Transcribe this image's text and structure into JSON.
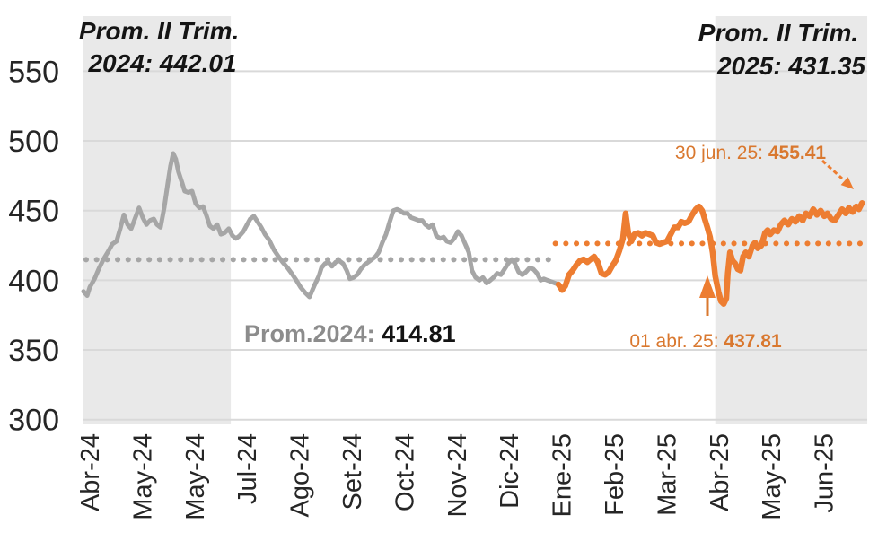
{
  "chart_data": {
    "type": "line",
    "title": "",
    "x_unit": "months since Apr-2024 (daily price series)",
    "x_tick_labels": [
      "Abr-24",
      "May-24",
      "May-24",
      "Jul-24",
      "Ago-24",
      "Set-24",
      "Oct-24",
      "Nov-24",
      "Dic-24",
      "Ene-25",
      "Feb-25",
      "Mar-25",
      "Abr-25",
      "May-25",
      "Jun-25"
    ],
    "y_ticks": [
      300,
      350,
      400,
      450,
      500,
      550
    ],
    "y_range": [
      300,
      550
    ],
    "grid": "horizontal",
    "legend": "none",
    "style": {
      "gray_series": "#A6A6A6",
      "orange_series": "#ED7D31",
      "annotation_orange": "#D9782F",
      "gridline": "#D9D9D9",
      "shade": "#E9E9E9",
      "text_dark": "#141414",
      "text_gray": "#8C8C8C"
    },
    "series": [
      {
        "name": "2024 (gray)",
        "color": "#A6A6A6",
        "width": 5,
        "points": [
          [
            0,
            392
          ],
          [
            0.07,
            389
          ],
          [
            0.12,
            395
          ],
          [
            0.21,
            401
          ],
          [
            0.29,
            408
          ],
          [
            0.38,
            415
          ],
          [
            0.46,
            420
          ],
          [
            0.55,
            426
          ],
          [
            0.63,
            428
          ],
          [
            0.7,
            437
          ],
          [
            0.77,
            447
          ],
          [
            0.84,
            440
          ],
          [
            0.91,
            437
          ],
          [
            0.98,
            444
          ],
          [
            1.06,
            452
          ],
          [
            1.13,
            445
          ],
          [
            1.2,
            440
          ],
          [
            1.27,
            443
          ],
          [
            1.34,
            444
          ],
          [
            1.4,
            440
          ],
          [
            1.47,
            438
          ],
          [
            1.54,
            452
          ],
          [
            1.61,
            470
          ],
          [
            1.66,
            482
          ],
          [
            1.71,
            491
          ],
          [
            1.76,
            487
          ],
          [
            1.81,
            478
          ],
          [
            1.88,
            470
          ],
          [
            1.93,
            464
          ],
          [
            2,
            463
          ],
          [
            2.07,
            464
          ],
          [
            2.14,
            455
          ],
          [
            2.21,
            452
          ],
          [
            2.28,
            453
          ],
          [
            2.35,
            446
          ],
          [
            2.41,
            439
          ],
          [
            2.48,
            437
          ],
          [
            2.55,
            440
          ],
          [
            2.62,
            433
          ],
          [
            2.69,
            434
          ],
          [
            2.77,
            437
          ],
          [
            2.84,
            432
          ],
          [
            2.91,
            430
          ],
          [
            2.98,
            432
          ],
          [
            3.05,
            435
          ],
          [
            3.12,
            440
          ],
          [
            3.18,
            444
          ],
          [
            3.25,
            446
          ],
          [
            3.32,
            442
          ],
          [
            3.39,
            438
          ],
          [
            3.46,
            433
          ],
          [
            3.54,
            429
          ],
          [
            3.63,
            422
          ],
          [
            3.72,
            417
          ],
          [
            3.8,
            413
          ],
          [
            3.89,
            409
          ],
          [
            3.97,
            405
          ],
          [
            4.06,
            400
          ],
          [
            4.14,
            395
          ],
          [
            4.23,
            391
          ],
          [
            4.31,
            388
          ],
          [
            4.4,
            396
          ],
          [
            4.49,
            403
          ],
          [
            4.54,
            409
          ],
          [
            4.61,
            412
          ],
          [
            4.67,
            413
          ],
          [
            4.74,
            410
          ],
          [
            4.81,
            413
          ],
          [
            4.88,
            414
          ],
          [
            4.95,
            412
          ],
          [
            5.02,
            407
          ],
          [
            5.08,
            401
          ],
          [
            5.15,
            402
          ],
          [
            5.22,
            404
          ],
          [
            5.29,
            408
          ],
          [
            5.36,
            411
          ],
          [
            5.43,
            413
          ],
          [
            5.5,
            415
          ],
          [
            5.57,
            417
          ],
          [
            5.63,
            420
          ],
          [
            5.7,
            427
          ],
          [
            5.77,
            433
          ],
          [
            5.84,
            442
          ],
          [
            5.91,
            450
          ],
          [
            5.98,
            451
          ],
          [
            6.04,
            450
          ],
          [
            6.11,
            448
          ],
          [
            6.18,
            448
          ],
          [
            6.25,
            445
          ],
          [
            6.32,
            444
          ],
          [
            6.39,
            443
          ],
          [
            6.46,
            443
          ],
          [
            6.52,
            440
          ],
          [
            6.59,
            438
          ],
          [
            6.66,
            440
          ],
          [
            6.73,
            432
          ],
          [
            6.8,
            430
          ],
          [
            6.87,
            431
          ],
          [
            6.93,
            428
          ],
          [
            7,
            427
          ],
          [
            7.07,
            430
          ],
          [
            7.14,
            435
          ],
          [
            7.21,
            432
          ],
          [
            7.28,
            426
          ],
          [
            7.35,
            420
          ],
          [
            7.41,
            407
          ],
          [
            7.48,
            402
          ],
          [
            7.55,
            400
          ],
          [
            7.62,
            402
          ],
          [
            7.69,
            398
          ],
          [
            7.76,
            400
          ],
          [
            7.82,
            402
          ],
          [
            7.89,
            405
          ],
          [
            7.96,
            404
          ],
          [
            8.03,
            408
          ],
          [
            8.1,
            412
          ],
          [
            8.17,
            415
          ],
          [
            8.23,
            412
          ],
          [
            8.3,
            406
          ],
          [
            8.37,
            404
          ],
          [
            8.44,
            406
          ],
          [
            8.51,
            409
          ],
          [
            8.58,
            408
          ],
          [
            8.65,
            405
          ],
          [
            8.72,
            400
          ],
          [
            8.78,
            401
          ],
          [
            8.85,
            400
          ],
          [
            8.92,
            399
          ],
          [
            8.99,
            398
          ],
          [
            9.06,
            397
          ]
        ]
      },
      {
        "name": "2025 (orange)",
        "color": "#ED7D31",
        "width": 6.5,
        "points": [
          [
            9.06,
            397
          ],
          [
            9.13,
            393
          ],
          [
            9.19,
            396
          ],
          [
            9.26,
            404
          ],
          [
            9.33,
            407
          ],
          [
            9.4,
            411
          ],
          [
            9.47,
            414
          ],
          [
            9.54,
            415
          ],
          [
            9.61,
            413
          ],
          [
            9.67,
            415
          ],
          [
            9.74,
            417
          ],
          [
            9.81,
            413
          ],
          [
            9.88,
            405
          ],
          [
            9.95,
            404
          ],
          [
            10.02,
            406
          ],
          [
            10.08,
            410
          ],
          [
            10.15,
            414
          ],
          [
            10.22,
            421
          ],
          [
            10.29,
            430
          ],
          [
            10.34,
            448
          ],
          [
            10.39,
            434
          ],
          [
            10.45,
            428
          ],
          [
            10.51,
            433
          ],
          [
            10.58,
            434
          ],
          [
            10.65,
            432
          ],
          [
            10.72,
            434
          ],
          [
            10.79,
            433
          ],
          [
            10.86,
            432
          ],
          [
            10.92,
            427
          ],
          [
            10.99,
            426
          ],
          [
            11.06,
            427
          ],
          [
            11.13,
            428
          ],
          [
            11.2,
            433
          ],
          [
            11.27,
            438
          ],
          [
            11.34,
            438
          ],
          [
            11.4,
            442
          ],
          [
            11.47,
            441
          ],
          [
            11.54,
            442
          ],
          [
            11.61,
            447
          ],
          [
            11.68,
            451
          ],
          [
            11.74,
            453
          ],
          [
            11.8,
            450
          ],
          [
            11.85,
            444
          ],
          [
            11.9,
            437.81
          ],
          [
            11.95,
            431
          ],
          [
            12,
            420
          ],
          [
            12.05,
            403
          ],
          [
            12.11,
            392
          ],
          [
            12.16,
            385
          ],
          [
            12.21,
            383
          ],
          [
            12.26,
            387
          ],
          [
            12.29,
            405
          ],
          [
            12.33,
            420
          ],
          [
            12.38,
            414
          ],
          [
            12.43,
            412
          ],
          [
            12.48,
            408
          ],
          [
            12.53,
            407
          ],
          [
            12.58,
            417
          ],
          [
            12.63,
            420
          ],
          [
            12.69,
            417
          ],
          [
            12.76,
            425
          ],
          [
            12.81,
            427
          ],
          [
            12.86,
            423
          ],
          [
            12.93,
            425
          ],
          [
            13,
            434
          ],
          [
            13.05,
            436
          ],
          [
            13.1,
            433
          ],
          [
            13.17,
            436
          ],
          [
            13.24,
            435
          ],
          [
            13.3,
            440
          ],
          [
            13.37,
            443
          ],
          [
            13.44,
            440
          ],
          [
            13.51,
            444
          ],
          [
            13.58,
            442
          ],
          [
            13.65,
            446
          ],
          [
            13.72,
            443
          ],
          [
            13.78,
            448
          ],
          [
            13.85,
            446
          ],
          [
            13.92,
            451
          ],
          [
            13.99,
            447
          ],
          [
            14.06,
            450
          ],
          [
            14.13,
            446
          ],
          [
            14.19,
            448
          ],
          [
            14.26,
            444
          ],
          [
            14.33,
            443
          ],
          [
            14.4,
            447
          ],
          [
            14.47,
            451
          ],
          [
            14.54,
            448
          ],
          [
            14.6,
            452
          ],
          [
            14.67,
            449
          ],
          [
            14.74,
            453
          ],
          [
            14.79,
            451
          ],
          [
            14.85,
            455.41
          ]
        ]
      }
    ],
    "reference_lines": [
      {
        "name": "Prom. 2024",
        "value": 414.81,
        "color": "#A6A6A6",
        "x_from": 0.05,
        "x_to": 8.9
      },
      {
        "name": "Promedio 2025 (nivel punteado, sin etiqueta)",
        "value": 426.4,
        "color": "#ED7D31",
        "x_from": 9.0,
        "x_to": 14.88
      }
    ],
    "shaded_periods": [
      {
        "name": "II Trimestre 2024",
        "x_from": 0.0,
        "x_to": 2.81
      },
      {
        "name": "II Trimestre 2025",
        "x_from": 12.05,
        "x_to": 14.95
      }
    ],
    "marked_points": [
      {
        "date_label": "01 abr. 25",
        "value": 437.81
      },
      {
        "date_label": "30 jun. 25",
        "value": 455.41
      }
    ],
    "annotations": {
      "top_left": {
        "line1": "Prom. II Trim.",
        "line2": "2024: 442.01"
      },
      "top_right": {
        "line1": "Prom. II Trim.",
        "line2": "2025: 431.35"
      },
      "avg_2024": {
        "label": "Prom.2024: ",
        "value": "414.81"
      },
      "end_point": {
        "label": "30 jun. 25: ",
        "value": "455.41"
      },
      "drop_point": {
        "label": "01 abr. 25: ",
        "value": "437.81"
      }
    }
  }
}
